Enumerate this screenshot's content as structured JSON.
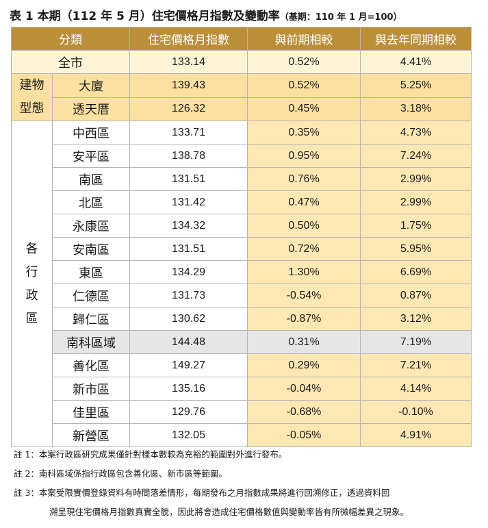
{
  "title": {
    "main": "表 1 本期（112 年 5 月）住宅價格月指數及變動率",
    "sub": "（基期：110 年 1 月=100）"
  },
  "headers": [
    "分類",
    "住宅價格月指數",
    "與前期相較",
    "與去年同期相較"
  ],
  "city": {
    "label": "全市",
    "index": "133.14",
    "mom": "0.52%",
    "yoy": "4.41%"
  },
  "building_group": "建物型態",
  "building_group_lines": [
    "建物",
    "型態"
  ],
  "building_types": [
    {
      "label": "大廈",
      "index": "139.43",
      "mom": "0.52%",
      "yoy": "5.25%"
    },
    {
      "label": "透天厝",
      "index": "126.32",
      "mom": "0.45%",
      "yoy": "3.18%"
    }
  ],
  "district_group": "各行政區",
  "district_group_chars": [
    "各",
    "行",
    "政",
    "區"
  ],
  "districts": [
    {
      "label": "中西區",
      "index": "133.71",
      "mom": "0.35%",
      "yoy": "4.73%"
    },
    {
      "label": "安平區",
      "index": "138.78",
      "mom": "0.95%",
      "yoy": "7.24%"
    },
    {
      "label": "南區",
      "index": "131.51",
      "mom": "0.76%",
      "yoy": "2.99%"
    },
    {
      "label": "北區",
      "index": "131.42",
      "mom": "0.47%",
      "yoy": "2.99%"
    },
    {
      "label": "永康區",
      "index": "134.32",
      "mom": "0.50%",
      "yoy": "1.75%"
    },
    {
      "label": "安南區",
      "index": "131.51",
      "mom": "0.72%",
      "yoy": "5.95%"
    },
    {
      "label": "東區",
      "index": "134.29",
      "mom": "1.30%",
      "yoy": "6.69%"
    },
    {
      "label": "仁德區",
      "index": "131.73",
      "mom": "-0.54%",
      "yoy": "0.87%"
    },
    {
      "label": "歸仁區",
      "index": "130.62",
      "mom": "-0.87%",
      "yoy": "3.12%"
    },
    {
      "label": "南科區域",
      "index": "144.48",
      "mom": "0.31%",
      "yoy": "7.19%",
      "highlight": true
    },
    {
      "label": "善化區",
      "index": "149.27",
      "mom": "0.29%",
      "yoy": "7.21%"
    },
    {
      "label": "新市區",
      "index": "135.16",
      "mom": "-0.04%",
      "yoy": "4.14%"
    },
    {
      "label": "佳里區",
      "index": "129.76",
      "mom": "-0.68%",
      "yoy": "-0.10%"
    },
    {
      "label": "新營區",
      "index": "132.05",
      "mom": "-0.05%",
      "yoy": "4.91%"
    }
  ],
  "notes": [
    "註 1：本案行政區研究成果僅針對樣本數較為充裕的範圍對外進行發布。",
    "註 2：南科區域係指行政區包含善化區、新市區等範圍。",
    "註 3：本案受限實價登錄資料有時間落差情形，每期發布之月指數成果將進行回溯修正，透過資料回",
    "溯呈現住宅價格月指數真實全貌，因此將會造成住宅價格數值與變動率皆有所微幅差異之現象。"
  ],
  "colors": {
    "header_bg": "#bb8f3a",
    "city_row_bg": "#fdf4d8",
    "building_bg": "#fbe0a0",
    "rate_column_bg": "#fde7b3",
    "highlight_row_bg": "#e7e6e6"
  }
}
